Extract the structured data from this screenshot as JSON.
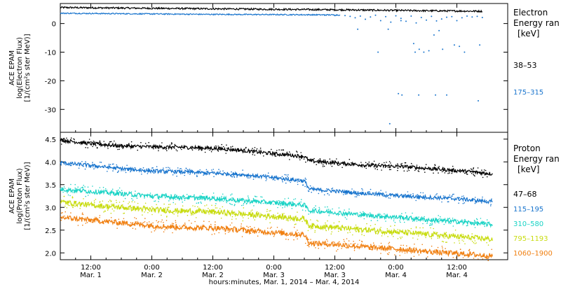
{
  "chart_data": [
    {
      "type": "line",
      "ylabel_lines": [
        "ACE EPAM",
        "log(Electron Flux)",
        "[1/(cm²s ster MeV)]"
      ],
      "yticks": [
        0,
        -10,
        -20,
        -30
      ],
      "ylim": [
        -38,
        7
      ],
      "xlim_hours": [
        0,
        88
      ],
      "legend": {
        "title_lines": [
          "Electron",
          "Energy ran",
          "[keV]"
        ],
        "entries": [
          {
            "label": "38–53",
            "color": "#000000"
          },
          {
            "label": "175–315",
            "color": "#1874cd"
          }
        ]
      },
      "series": [
        {
          "color": "#000000",
          "x": [
            0,
            20,
            40,
            55,
            70,
            83
          ],
          "y": [
            5.6,
            5.3,
            5.0,
            4.8,
            4.5,
            4.3
          ],
          "noise": 0.3
        },
        {
          "color": "#1874cd",
          "x": [
            0,
            15,
            30,
            45,
            55
          ],
          "y": [
            3.6,
            3.4,
            3.2,
            3.1,
            3.0
          ],
          "noise": 0.2
        }
      ],
      "scatter": {
        "color": "#1874cd",
        "x": [
          56,
          57,
          58,
          59,
          60,
          61,
          62,
          63,
          64,
          65,
          66,
          67,
          68,
          69,
          70,
          71,
          72,
          73,
          74,
          75,
          76,
          77,
          78,
          79,
          80,
          81,
          82,
          83,
          50,
          52,
          54,
          58.5,
          62.5,
          64.5,
          67,
          69.5,
          70.5,
          71.5,
          72.5,
          74.5,
          75.2,
          76,
          77.5,
          78.5,
          79.5,
          82.5,
          66.5,
          67.2,
          69.8,
          70.6,
          73.5,
          64.8,
          82.2,
          73.8
        ],
        "y": [
          2.8,
          2.5,
          2.0,
          2.6,
          1.5,
          2.3,
          2.9,
          1.0,
          2.4,
          0.5,
          2.7,
          1.8,
          0.8,
          2.6,
          0.2,
          2.1,
          1.2,
          2.5,
          0.9,
          1.6,
          2.2,
          2.4,
          1.0,
          2.0,
          2.6,
          2.3,
          2.5,
          2.1,
          3.0,
          2.9,
          2.8,
          -2.0,
          -10,
          -2.0,
          1.0,
          -7.0,
          -25,
          -10,
          -9.5,
          -2.5,
          -9.0,
          -25,
          -7.5,
          -8.0,
          -10,
          -7.5,
          -24.5,
          -25,
          -10,
          -9,
          -4,
          -35,
          -27,
          -25
        ],
        "r": 1.0
      }
    },
    {
      "type": "scatter",
      "ylabel_lines": [
        "ACE EPAM",
        "log(Proton Flux)",
        "[1/(cm²s ster MeV)]"
      ],
      "yticks": [
        2.0,
        2.5,
        3.0,
        3.5,
        4.0,
        4.5
      ],
      "ylim": [
        1.85,
        4.65
      ],
      "xlim_hours": [
        0,
        88
      ],
      "legend": {
        "title_lines": [
          "Proton",
          "Energy ran",
          "[keV]"
        ],
        "entries": [
          {
            "label": "47–68",
            "color": "#000000"
          },
          {
            "label": "115–195",
            "color": "#1874cd"
          },
          {
            "label": "310–580",
            "color": "#19d3c5"
          },
          {
            "label": "795–1193",
            "color": "#c8dc10"
          },
          {
            "label": "1060–1900",
            "color": "#f07f10"
          }
        ]
      },
      "series": [
        {
          "color": "#000000",
          "x": [
            0,
            6,
            12,
            18,
            24,
            30,
            36,
            42,
            48,
            49,
            55,
            61,
            67,
            73,
            79,
            85
          ],
          "y": [
            4.48,
            4.4,
            4.35,
            4.33,
            4.32,
            4.3,
            4.25,
            4.18,
            4.12,
            4.02,
            3.97,
            3.92,
            3.9,
            3.85,
            3.8,
            3.74
          ],
          "noise": 0.04
        },
        {
          "color": "#1874cd",
          "x": [
            0,
            6,
            12,
            18,
            24,
            30,
            36,
            42,
            48,
            49,
            55,
            61,
            67,
            73,
            79,
            85
          ],
          "y": [
            3.98,
            3.92,
            3.85,
            3.8,
            3.78,
            3.75,
            3.72,
            3.65,
            3.58,
            3.4,
            3.35,
            3.3,
            3.25,
            3.22,
            3.18,
            3.12
          ],
          "noise": 0.04
        },
        {
          "color": "#19d3c5",
          "x": [
            0,
            6,
            12,
            18,
            24,
            30,
            36,
            42,
            48,
            49,
            55,
            61,
            67,
            73,
            79,
            85
          ],
          "y": [
            3.4,
            3.35,
            3.3,
            3.25,
            3.22,
            3.2,
            3.15,
            3.1,
            3.05,
            2.93,
            2.88,
            2.82,
            2.78,
            2.72,
            2.68,
            2.62
          ],
          "noise": 0.05
        },
        {
          "color": "#c8dc10",
          "x": [
            0,
            6,
            12,
            18,
            24,
            30,
            36,
            42,
            48,
            49,
            55,
            61,
            67,
            73,
            79,
            85
          ],
          "y": [
            3.12,
            3.05,
            3.0,
            2.95,
            2.92,
            2.9,
            2.85,
            2.8,
            2.75,
            2.6,
            2.55,
            2.5,
            2.45,
            2.4,
            2.35,
            2.3
          ],
          "noise": 0.06
        },
        {
          "color": "#f07f10",
          "x": [
            0,
            6,
            12,
            18,
            24,
            30,
            36,
            42,
            48,
            49,
            55,
            61,
            67,
            73,
            79,
            85
          ],
          "y": [
            2.78,
            2.72,
            2.66,
            2.6,
            2.56,
            2.55,
            2.5,
            2.45,
            2.4,
            2.22,
            2.18,
            2.12,
            2.08,
            2.02,
            1.98,
            1.93
          ],
          "noise": 0.06
        }
      ]
    }
  ],
  "x_axis": {
    "ticks": [
      {
        "hours": 6,
        "time": "12:00",
        "date": "Mar. 1"
      },
      {
        "hours": 18,
        "time": "0:00",
        "date": "Mar. 2"
      },
      {
        "hours": 30,
        "time": "12:00",
        "date": "Mar. 2"
      },
      {
        "hours": 42,
        "time": "0:00",
        "date": "Mar. 3"
      },
      {
        "hours": 54,
        "time": "12:00",
        "date": "Mar. 3"
      },
      {
        "hours": 66,
        "time": "0:00",
        "date": "Mar. 4"
      },
      {
        "hours": 78,
        "time": "12:00",
        "date": "Mar. 4"
      }
    ],
    "label": "hours:minutes, Mar.  1, 2014 – Mar.  4, 2014"
  }
}
